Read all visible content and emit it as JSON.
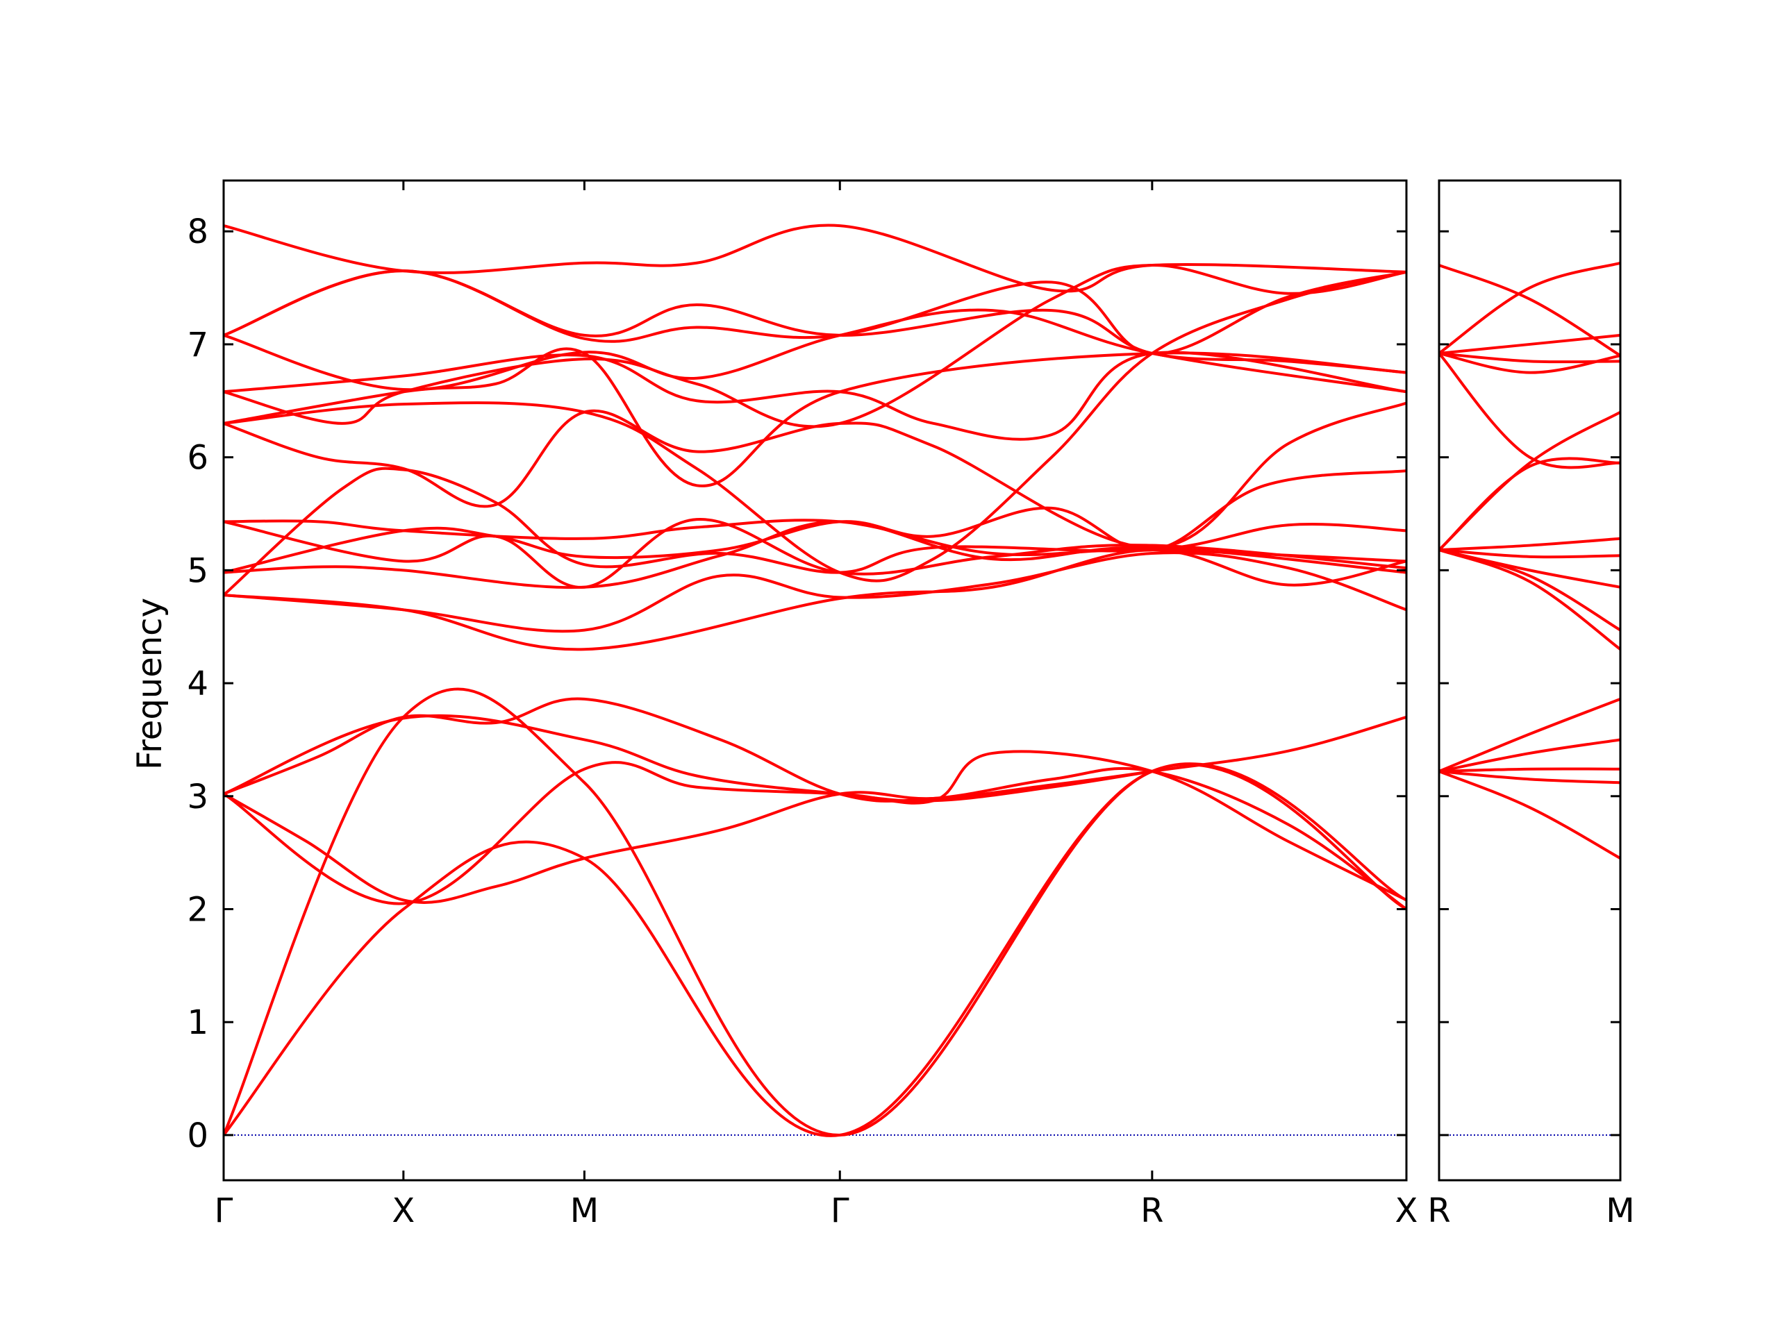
{
  "chart_data": {
    "type": "line",
    "ylabel": "Frequency",
    "ylim": [
      -0.4,
      8.45
    ],
    "y_ticks": [
      0,
      1,
      2,
      3,
      4,
      5,
      6,
      7,
      8
    ],
    "line_color": "#ff0000",
    "zero_line_color": "#0000aa",
    "panels": [
      {
        "name": "main",
        "x_range": [
          0,
          1
        ],
        "points": [
          {
            "label": "Γ",
            "x": 0.0
          },
          {
            "label": "X",
            "x": 0.152
          },
          {
            "label": "M",
            "x": 0.305
          },
          {
            "label": "Γ",
            "x": 0.521
          },
          {
            "label": "R",
            "x": 0.785
          },
          {
            "label": "X",
            "x": 1.0
          }
        ],
        "series": [
          {
            "x": [
              0,
              0.152,
              0.305,
              0.521,
              0.785,
              1.0
            ],
            "y": [
              0,
              2.0,
              2.45,
              0,
              3.22,
              2.0
            ]
          },
          {
            "x": [
              0,
              0.152,
              0.305,
              0.521,
              0.785,
              1.0
            ],
            "y": [
              0,
              3.7,
              3.12,
              0,
              3.22,
              2.08
            ]
          },
          {
            "x": [
              0,
              0.07,
              0.152,
              0.23,
              0.305,
              0.42,
              0.521,
              0.6,
              0.7,
              0.785,
              0.9,
              1.0
            ],
            "y": [
              3.02,
              2.6,
              2.08,
              2.2,
              2.45,
              2.7,
              3.02,
              2.98,
              3.1,
              3.22,
              3.4,
              3.7
            ]
          },
          {
            "x": [
              0,
              0.08,
              0.152,
              0.23,
              0.305,
              0.42,
              0.521,
              0.6,
              0.7,
              0.785,
              0.9,
              1.0
            ],
            "y": [
              3.02,
              3.35,
              3.7,
              3.65,
              3.86,
              3.5,
              3.02,
              2.98,
              3.15,
              3.22,
              2.75,
              2.0
            ]
          },
          {
            "x": [
              0,
              0.152,
              0.305,
              0.4,
              0.521,
              0.6,
              0.65,
              0.785,
              0.9,
              1.0
            ],
            "y": [
              3.02,
              2.05,
              3.24,
              3.08,
              3.02,
              2.96,
              3.38,
              3.22,
              2.6,
              2.08
            ]
          },
          {
            "x": [
              0,
              0.152,
              0.305,
              0.4,
              0.521,
              0.6,
              0.7,
              0.785
            ],
            "y": [
              3.02,
              3.69,
              3.5,
              3.18,
              3.02,
              2.96,
              3.08,
              3.22
            ]
          },
          {
            "x": [
              0,
              0.152,
              0.305,
              0.521,
              0.65,
              0.785,
              0.9,
              1.0
            ],
            "y": [
              4.78,
              4.65,
              4.3,
              4.75,
              4.85,
              5.18,
              4.87,
              5.08
            ]
          },
          {
            "x": [
              0,
              0.152,
              0.305,
              0.42,
              0.521,
              0.65,
              0.785,
              0.9,
              1.0
            ],
            "y": [
              4.78,
              4.65,
              4.47,
              4.95,
              4.76,
              4.88,
              5.15,
              5.02,
              4.65
            ]
          },
          {
            "x": [
              0,
              0.1,
              0.152,
              0.23,
              0.305,
              0.42,
              0.521,
              0.6,
              0.785,
              0.9,
              1.0
            ],
            "y": [
              4.78,
              5.72,
              5.89,
              5.6,
              5.05,
              5.15,
              4.98,
              5.2,
              5.18,
              5.4,
              5.35
            ]
          },
          {
            "x": [
              0,
              0.152,
              0.23,
              0.305,
              0.42,
              0.521,
              0.6,
              0.7,
              0.785,
              0.88,
              1.0
            ],
            "y": [
              4.98,
              5.35,
              5.3,
              5.12,
              5.18,
              5.43,
              5.3,
              5.55,
              5.18,
              5.75,
              5.88
            ]
          },
          {
            "x": [
              0,
              0.08,
              0.152,
              0.305,
              0.42,
              0.521,
              0.65,
              0.785,
              1.0
            ],
            "y": [
              4.98,
              5.03,
              5.0,
              4.85,
              5.13,
              5.43,
              5.1,
              5.2,
              4.98
            ]
          },
          {
            "x": [
              0,
              0.08,
              0.152,
              0.305,
              0.4,
              0.521,
              0.65,
              0.785,
              1.0
            ],
            "y": [
              5.43,
              5.43,
              5.35,
              5.28,
              5.38,
              5.43,
              5.15,
              5.18,
              5.08
            ]
          },
          {
            "x": [
              0,
              0.152,
              0.23,
              0.305,
              0.4,
              0.521,
              0.65,
              0.785,
              1.0
            ],
            "y": [
              5.43,
              5.08,
              5.3,
              4.85,
              5.45,
              4.98,
              5.12,
              5.22,
              5.02
            ]
          },
          {
            "x": [
              0,
              0.152,
              0.305,
              0.4,
              0.521,
              0.6,
              0.7,
              0.785,
              0.9,
              1.0
            ],
            "y": [
              6.3,
              6.47,
              6.4,
              5.9,
              4.98,
              5.1,
              6.0,
              6.92,
              7.4,
              7.64
            ]
          },
          {
            "x": [
              0,
              0.08,
              0.152,
              0.23,
              0.305,
              0.4,
              0.521,
              0.6,
              0.785,
              0.9,
              1.0
            ],
            "y": [
              6.3,
              6.0,
              5.9,
              5.58,
              6.4,
              6.05,
              6.3,
              6.1,
              5.2,
              6.12,
              6.48
            ]
          },
          {
            "x": [
              0,
              0.1,
              0.152,
              0.305,
              0.4,
              0.521,
              0.7,
              0.785,
              0.9,
              1.0
            ],
            "y": [
              6.58,
              6.3,
              6.58,
              6.87,
              6.65,
              6.3,
              7.4,
              7.7,
              7.45,
              7.64
            ]
          },
          {
            "x": [
              0,
              0.152,
              0.305,
              0.4,
              0.521,
              0.6,
              0.7,
              0.785,
              1.0
            ],
            "y": [
              6.58,
              6.72,
              6.9,
              6.5,
              6.58,
              6.3,
              6.2,
              6.92,
              6.58
            ]
          },
          {
            "x": [
              0,
              0.152,
              0.23,
              0.305,
              0.4,
              0.521,
              0.785,
              1.0
            ],
            "y": [
              6.3,
              6.58,
              6.65,
              6.92,
              5.75,
              6.58,
              6.92,
              6.75
            ]
          },
          {
            "x": [
              0,
              0.152,
              0.305,
              0.4,
              0.521,
              0.65,
              0.785,
              1.0
            ],
            "y": [
              7.08,
              6.6,
              6.93,
              6.7,
              7.08,
              7.3,
              6.92,
              6.58
            ]
          },
          {
            "x": [
              0,
              0.152,
              0.305,
              0.4,
              0.521,
              0.7,
              0.785,
              0.9,
              1.0
            ],
            "y": [
              7.08,
              7.65,
              7.08,
              7.35,
              7.08,
              7.3,
              6.92,
              6.85,
              6.75
            ]
          },
          {
            "x": [
              0,
              0.152,
              0.305,
              0.4,
              0.521,
              0.7,
              0.785,
              1.0
            ],
            "y": [
              8.05,
              7.65,
              7.72,
              7.72,
              8.05,
              7.48,
              7.7,
              7.64
            ]
          },
          {
            "x": [
              0,
              0.152,
              0.305,
              0.4,
              0.521,
              0.7,
              0.785,
              0.9,
              1.0
            ],
            "y": [
              7.08,
              7.65,
              7.05,
              7.15,
              7.08,
              7.55,
              6.92,
              7.42,
              7.64
            ]
          }
        ]
      },
      {
        "name": "side",
        "x_range": [
          0,
          1
        ],
        "points": [
          {
            "label": "R",
            "x": 0.0
          },
          {
            "label": "M",
            "x": 1.0
          }
        ],
        "series": [
          {
            "x": [
              0,
              0.5,
              1.0
            ],
            "y": [
              3.22,
              2.9,
              2.45
            ]
          },
          {
            "x": [
              0,
              0.5,
              1.0
            ],
            "y": [
              3.22,
              3.15,
              3.12
            ]
          },
          {
            "x": [
              0,
              0.5,
              1.0
            ],
            "y": [
              3.22,
              3.24,
              3.24
            ]
          },
          {
            "x": [
              0,
              0.5,
              1.0
            ],
            "y": [
              3.22,
              3.38,
              3.5
            ]
          },
          {
            "x": [
              0,
              0.5,
              1.0
            ],
            "y": [
              3.22,
              3.55,
              3.86
            ]
          },
          {
            "x": [
              0,
              0.5,
              1.0
            ],
            "y": [
              5.18,
              4.9,
              4.3
            ]
          },
          {
            "x": [
              0,
              0.5,
              1.0
            ],
            "y": [
              5.18,
              4.95,
              4.47
            ]
          },
          {
            "x": [
              0,
              0.5,
              1.0
            ],
            "y": [
              5.18,
              5.0,
              4.85
            ]
          },
          {
            "x": [
              0,
              0.5,
              1.0
            ],
            "y": [
              5.18,
              5.12,
              5.13
            ]
          },
          {
            "x": [
              0,
              0.5,
              1.0
            ],
            "y": [
              5.18,
              5.22,
              5.28
            ]
          },
          {
            "x": [
              0,
              0.5,
              1.0
            ],
            "y": [
              5.18,
              5.92,
              5.95
            ]
          },
          {
            "x": [
              0,
              0.5,
              1.0
            ],
            "y": [
              5.18,
              5.95,
              6.4
            ]
          },
          {
            "x": [
              0,
              0.5,
              1.0
            ],
            "y": [
              6.92,
              6.0,
              5.95
            ]
          },
          {
            "x": [
              0,
              0.5,
              1.0
            ],
            "y": [
              6.92,
              6.75,
              6.9
            ]
          },
          {
            "x": [
              0,
              0.5,
              1.0
            ],
            "y": [
              6.92,
              6.85,
              6.85
            ]
          },
          {
            "x": [
              0,
              0.5,
              1.0
            ],
            "y": [
              6.92,
              7.0,
              7.08
            ]
          },
          {
            "x": [
              0,
              0.5,
              1.0
            ],
            "y": [
              6.92,
              7.5,
              7.72
            ]
          },
          {
            "x": [
              0,
              0.5,
              1.0
            ],
            "y": [
              7.7,
              7.4,
              6.9
            ]
          }
        ]
      }
    ]
  }
}
